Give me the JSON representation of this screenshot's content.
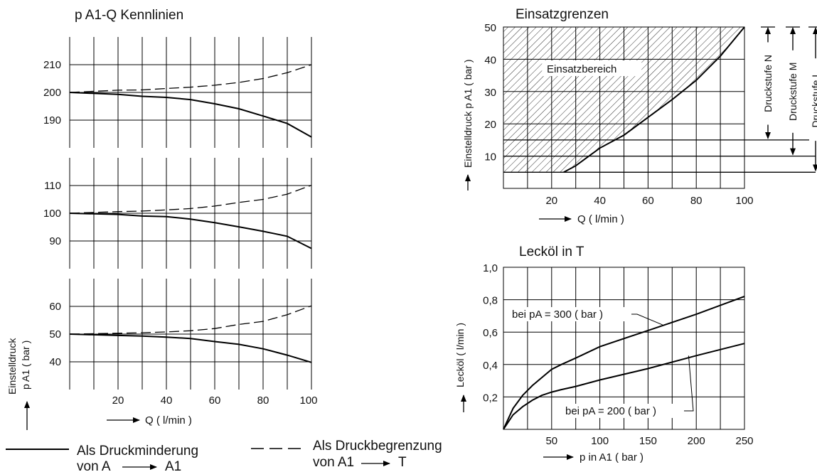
{
  "main_title": "p A1-Q Kennlinien",
  "left": {
    "panels": [
      {
        "ticks": [
          "210",
          "200",
          "190"
        ],
        "ylim": [
          180,
          220
        ],
        "curves": {
          "druckminderung": {
            "x": [
              0,
              20,
              30,
              40,
              50,
              60,
              70,
              80,
              90,
              100
            ],
            "y": [
              200,
              199.3,
              198.6,
              198.2,
              197.4,
              195.9,
              194.1,
              191.5,
              188.8,
              183.9
            ]
          },
          "druckbegrenzung": {
            "x": [
              0,
              20,
              30,
              40,
              50,
              60,
              70,
              80,
              90,
              100
            ],
            "y": [
              200,
              200.8,
              200.9,
              201.4,
              201.9,
              202.6,
              203.6,
              205.0,
              207.1,
              210.0
            ]
          }
        }
      },
      {
        "ticks": [
          "110",
          "100",
          "90"
        ],
        "ylim": [
          80,
          120
        ],
        "curves": {
          "druckminderung": {
            "x": [
              0,
              20,
              30,
              40,
              50,
              60,
              70,
              80,
              90,
              100
            ],
            "y": [
              100,
              99.6,
              99.0,
              98.8,
              97.9,
              96.6,
              95.1,
              93.5,
              91.7,
              87.3
            ]
          },
          "druckbegrenzung": {
            "x": [
              0,
              20,
              30,
              40,
              50,
              60,
              70,
              80,
              90,
              100
            ],
            "y": [
              100,
              100.6,
              100.8,
              101.2,
              101.7,
              102.6,
              103.9,
              105.0,
              106.9,
              110.1
            ]
          }
        }
      },
      {
        "ticks": [
          "60",
          "50",
          "40"
        ],
        "ylim": [
          30,
          70
        ],
        "curves": {
          "druckminderung": {
            "x": [
              0,
              20,
              30,
              40,
              50,
              60,
              70,
              80,
              90,
              100
            ],
            "y": [
              50,
              49.5,
              49.3,
              48.9,
              48.4,
              47.3,
              46.3,
              44.7,
              42.4,
              39.8
            ]
          },
          "druckbegrenzung": {
            "x": [
              0,
              20,
              30,
              40,
              50,
              60,
              70,
              80,
              90,
              100
            ],
            "y": [
              50,
              50.3,
              50.5,
              50.8,
              51.2,
              52.0,
              53.5,
              54.6,
              57.0,
              60.2
            ]
          }
        }
      }
    ],
    "x_ticks": [
      "20",
      "40",
      "60",
      "80",
      "100"
    ],
    "xlabel": "Q ( l/min )",
    "ylabel_line1": "Einstelldruck",
    "ylabel_line2": "p A1 ( bar )",
    "xlim": [
      0,
      100
    ]
  },
  "legend": {
    "solid_line1": "Als Druckminderung",
    "solid_line2": "von A",
    "solid_arrow_target": "A1",
    "dashed_line1": "Als Druckbegrenzung",
    "dashed_line2": "von A1",
    "dashed_arrow_target": "T"
  },
  "einsatz": {
    "title": "Einsatzgrenzen",
    "area_label": "Einsatzbereich",
    "ylabel": "Einstelldruck p A1 ( bar )",
    "xlabel": "Q ( l/min )",
    "y_ticks": [
      "10",
      "20",
      "30",
      "40",
      "50"
    ],
    "x_ticks": [
      "20",
      "40",
      "60",
      "80",
      "100"
    ],
    "xlim": [
      0,
      100
    ],
    "ylim": [
      0,
      50
    ],
    "boundary": {
      "x": [
        25,
        30,
        40,
        50,
        60,
        70,
        80,
        90,
        100
      ],
      "y": [
        5,
        7,
        12.5,
        16.5,
        22,
        27.5,
        33.5,
        41,
        50
      ]
    },
    "pressure_stages": [
      {
        "label": "Druckstufe N",
        "min": 15,
        "max": 50
      },
      {
        "label": "Druckstufe M",
        "min": 10,
        "max": 50
      },
      {
        "label": "Druckstufe L",
        "min": 5,
        "max": 50
      }
    ]
  },
  "leckoel": {
    "title": "Lecköl in T",
    "ylabel": "Lecköl ( l/min )",
    "xlabel": "p in A1 ( bar )",
    "y_ticks": [
      "0,2",
      "0,4",
      "0,6",
      "0,8",
      "1,0"
    ],
    "x_ticks": [
      "50",
      "100",
      "150",
      "200",
      "250"
    ],
    "xlim": [
      0,
      250
    ],
    "ylim": [
      0,
      1.0
    ],
    "series": [
      {
        "name": "bei pA = 300 ( bar )",
        "x": [
          0,
          10,
          20,
          30,
          40,
          50,
          60,
          75,
          100,
          150,
          200,
          250
        ],
        "y": [
          0,
          0.13,
          0.21,
          0.27,
          0.32,
          0.37,
          0.4,
          0.44,
          0.51,
          0.61,
          0.71,
          0.82
        ]
      },
      {
        "name": "bei pA = 200 ( bar )",
        "x": [
          0,
          10,
          20,
          30,
          40,
          50,
          60,
          75,
          100,
          150,
          200,
          250
        ],
        "y": [
          0,
          0.09,
          0.14,
          0.18,
          0.21,
          0.23,
          0.245,
          0.265,
          0.305,
          0.375,
          0.455,
          0.53
        ]
      }
    ]
  },
  "chart_data": [
    {
      "type": "line",
      "title": "p A1-Q Kennlinien",
      "xlabel": "Q ( l/min )",
      "ylabel": "Einstelldruck p A1 ( bar )",
      "xlim": [
        0,
        100
      ],
      "ylim": [
        180,
        220
      ],
      "series": [
        {
          "name": "Als Druckminderung",
          "x": [
            0,
            20,
            30,
            40,
            50,
            60,
            70,
            80,
            90,
            100
          ],
          "y": [
            200,
            199.3,
            198.6,
            198.2,
            197.4,
            195.9,
            194.1,
            191.5,
            188.8,
            183.9
          ]
        },
        {
          "name": "Als Druckbegrenzung",
          "x": [
            0,
            20,
            30,
            40,
            50,
            60,
            70,
            80,
            90,
            100
          ],
          "y": [
            200,
            200.8,
            200.9,
            201.4,
            201.9,
            202.6,
            203.6,
            205.0,
            207.1,
            210.0
          ]
        }
      ]
    },
    {
      "type": "line",
      "xlabel": "Q ( l/min )",
      "ylabel": "Einstelldruck p A1 ( bar )",
      "xlim": [
        0,
        100
      ],
      "ylim": [
        80,
        120
      ],
      "series": [
        {
          "name": "Als Druckminderung",
          "x": [
            0,
            20,
            30,
            40,
            50,
            60,
            70,
            80,
            90,
            100
          ],
          "y": [
            100,
            99.6,
            99.0,
            98.8,
            97.9,
            96.6,
            95.1,
            93.5,
            91.7,
            87.3
          ]
        },
        {
          "name": "Als Druckbegrenzung",
          "x": [
            0,
            20,
            30,
            40,
            50,
            60,
            70,
            80,
            90,
            100
          ],
          "y": [
            100,
            100.6,
            100.8,
            101.2,
            101.7,
            102.6,
            103.9,
            105.0,
            106.9,
            110.1
          ]
        }
      ]
    },
    {
      "type": "line",
      "xlabel": "Q ( l/min )",
      "ylabel": "Einstelldruck p A1 ( bar )",
      "xlim": [
        0,
        100
      ],
      "ylim": [
        30,
        70
      ],
      "series": [
        {
          "name": "Als Druckminderung",
          "x": [
            0,
            20,
            30,
            40,
            50,
            60,
            70,
            80,
            90,
            100
          ],
          "y": [
            50,
            49.5,
            49.3,
            48.9,
            48.4,
            47.3,
            46.3,
            44.7,
            42.4,
            39.8
          ]
        },
        {
          "name": "Als Druckbegrenzung",
          "x": [
            0,
            20,
            30,
            40,
            50,
            60,
            70,
            80,
            90,
            100
          ],
          "y": [
            50,
            50.3,
            50.5,
            50.8,
            51.2,
            52.0,
            53.5,
            54.6,
            57.0,
            60.2
          ]
        }
      ]
    },
    {
      "type": "area",
      "title": "Einsatzgrenzen",
      "xlabel": "Q ( l/min )",
      "ylabel": "Einstelldruck p A1 ( bar )",
      "xlim": [
        0,
        100
      ],
      "ylim": [
        0,
        50
      ],
      "series": [
        {
          "name": "Einsatzbereich",
          "x": [
            25,
            30,
            40,
            50,
            60,
            70,
            80,
            90,
            100
          ],
          "y": [
            5,
            7,
            12.5,
            16.5,
            22,
            27.5,
            33.5,
            41,
            50
          ]
        }
      ]
    },
    {
      "type": "line",
      "title": "Lecköl in T",
      "xlabel": "p in A1 ( bar )",
      "ylabel": "Lecköl ( l/min )",
      "xlim": [
        0,
        250
      ],
      "ylim": [
        0,
        1.0
      ],
      "series": [
        {
          "name": "bei pA = 300 ( bar )",
          "x": [
            0,
            10,
            20,
            30,
            40,
            50,
            60,
            75,
            100,
            150,
            200,
            250
          ],
          "y": [
            0,
            0.13,
            0.21,
            0.27,
            0.32,
            0.37,
            0.4,
            0.44,
            0.51,
            0.61,
            0.71,
            0.82
          ]
        },
        {
          "name": "bei pA = 200 ( bar )",
          "x": [
            0,
            10,
            20,
            30,
            40,
            50,
            60,
            75,
            100,
            150,
            200,
            250
          ],
          "y": [
            0,
            0.09,
            0.14,
            0.18,
            0.21,
            0.23,
            0.245,
            0.265,
            0.305,
            0.375,
            0.455,
            0.53
          ]
        }
      ]
    }
  ]
}
